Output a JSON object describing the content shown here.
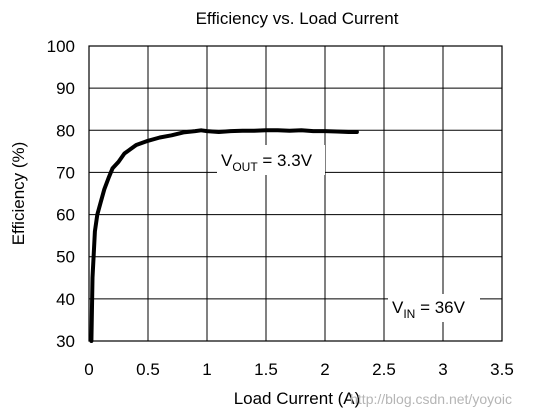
{
  "chart_data": {
    "type": "line",
    "title": "Efficiency vs. Load Current",
    "xlabel": "Load Current (A)",
    "ylabel": "Efficiency (%)",
    "xlim": [
      0,
      3.5
    ],
    "ylim": [
      30,
      100
    ],
    "xticks": [
      "0",
      "0.5",
      "1",
      "1.5",
      "2",
      "2.5",
      "3",
      "3.5"
    ],
    "yticks": [
      "30",
      "40",
      "50",
      "60",
      "70",
      "80",
      "90",
      "100"
    ],
    "grid": true,
    "series": [
      {
        "x": [
          0.02,
          0.03,
          0.05,
          0.07,
          0.1,
          0.13,
          0.17,
          0.2,
          0.25,
          0.3,
          0.35,
          0.4,
          0.45,
          0.5,
          0.6,
          0.7,
          0.8,
          0.9,
          0.95,
          1.0,
          1.1,
          1.2,
          1.3,
          1.4,
          1.5,
          1.6,
          1.7,
          1.8,
          1.9,
          2.0,
          2.1,
          2.2,
          2.27
        ],
        "y": [
          30,
          45,
          56,
          60,
          63,
          66,
          69,
          71,
          72.5,
          74.5,
          75.5,
          76.5,
          77,
          77.5,
          78.3,
          78.8,
          79.5,
          79.8,
          80,
          79.8,
          79.6,
          79.8,
          79.9,
          79.9,
          80,
          80,
          79.9,
          80,
          79.8,
          79.8,
          79.7,
          79.6,
          79.6
        ]
      }
    ],
    "annotations": {
      "vout_main": "V",
      "vout_sub": "OUT",
      "vout_rest": " = 3.3V",
      "vin_main": "V",
      "vin_sub": "IN",
      "vin_rest": " = 36V"
    }
  },
  "watermark": "http://blog.csdn.net/yoyoic",
  "colors": {
    "line": "#000000",
    "grid": "#000000",
    "watermark": "#b5b5b5"
  }
}
